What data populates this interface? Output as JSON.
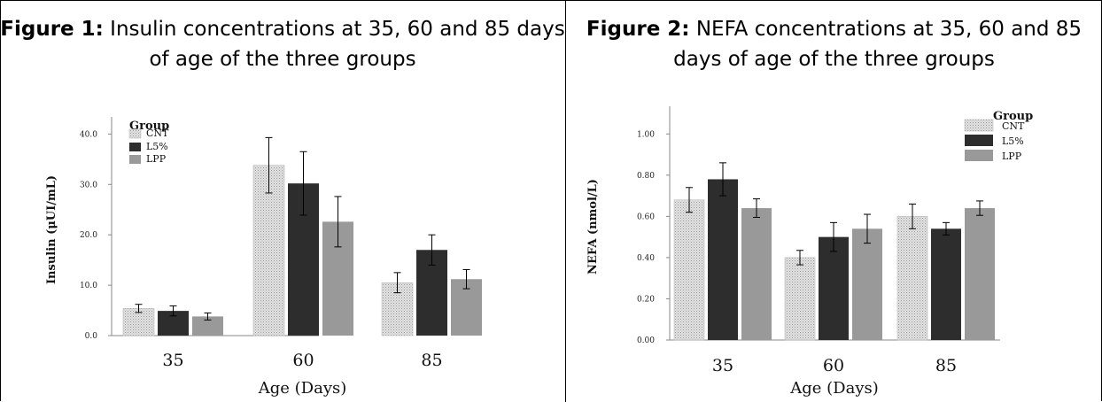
{
  "colors": {
    "CNT": "#d4d4d4",
    "L5%": "#2d2d2d",
    "LPP": "#999999",
    "axis": "#888888",
    "error": "#000000"
  },
  "figures": [
    {
      "caption_label": "Figure 1:",
      "caption_text": " Insulin concentrations at 35, 60 and 85 days of age of the three groups"
    },
    {
      "caption_label": "Figure 2:",
      "caption_text": " NEFA concentrations at 35, 60 and 85 days of age of the three groups"
    }
  ],
  "chart_data": [
    {
      "type": "bar",
      "title": "",
      "xlabel": "Age (Days)",
      "ylabel": "Insulin (μUI/mL)",
      "categories": [
        "35",
        "60",
        "85"
      ],
      "ylim": [
        0,
        42
      ],
      "yticks": [
        "0.0",
        "10.0",
        "20.0",
        "30.0",
        "40.0"
      ],
      "ytick_values": [
        0,
        10,
        20,
        30,
        40
      ],
      "legend_title": "Group",
      "legend_position": "top-left",
      "series": [
        {
          "name": "CNT",
          "values": [
            5.4,
            33.8,
            10.5
          ],
          "error": [
            0.8,
            5.5,
            2.0
          ]
        },
        {
          "name": "L5%",
          "values": [
            4.9,
            30.2,
            17.0
          ],
          "error": [
            1.0,
            6.3,
            3.0
          ]
        },
        {
          "name": "LPP",
          "values": [
            3.8,
            22.6,
            11.2
          ],
          "error": [
            0.7,
            5.0,
            1.9
          ]
        }
      ]
    },
    {
      "type": "bar",
      "title": "",
      "xlabel": "Age (Days)",
      "ylabel": "NEFA  (nmol/L)",
      "categories": [
        "35",
        "60",
        "85"
      ],
      "ylim": [
        0,
        1.1
      ],
      "yticks": [
        "0.00",
        "0.20",
        "0.40",
        "0.60",
        "0.80",
        "1.00"
      ],
      "ytick_values": [
        0,
        0.2,
        0.4,
        0.6,
        0.8,
        1.0
      ],
      "legend_title": "Group",
      "legend_position": "top-right",
      "series": [
        {
          "name": "CNT",
          "values": [
            0.68,
            0.4,
            0.6
          ],
          "error": [
            0.06,
            0.035,
            0.06
          ]
        },
        {
          "name": "L5%",
          "values": [
            0.78,
            0.5,
            0.54
          ],
          "error": [
            0.08,
            0.07,
            0.03
          ]
        },
        {
          "name": "LPP",
          "values": [
            0.64,
            0.54,
            0.64
          ],
          "error": [
            0.045,
            0.07,
            0.035
          ]
        }
      ]
    }
  ]
}
